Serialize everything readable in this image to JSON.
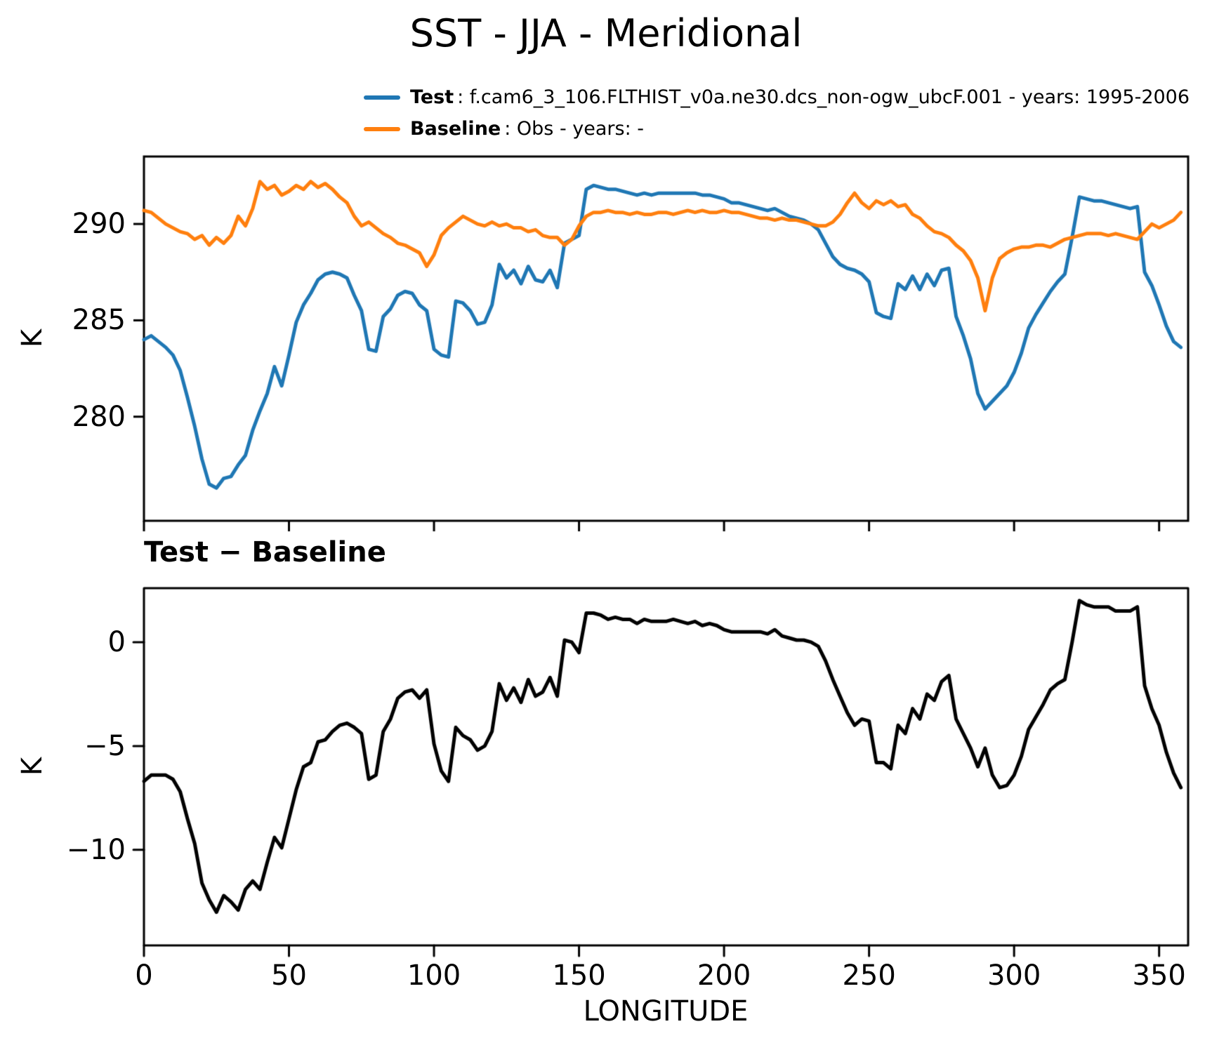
{
  "title": "SST - JJA - Meridional",
  "legend": {
    "items": [
      {
        "label": "Test",
        "desc": ": f.cam6_3_106.FLTHIST_v0a.ne30.dcs_non-ogw_ubcF.001 - years: 1995-2006",
        "color": "#1f77b4"
      },
      {
        "label": "Baseline",
        "desc": ": Obs - years: -",
        "color": "#ff7f0e"
      }
    ]
  },
  "chart_data": [
    {
      "id": "main",
      "type": "line",
      "title": "",
      "ylabel": "K",
      "xlabel": "",
      "xlim": [
        0,
        360
      ],
      "ylim": [
        274.6,
        293.5
      ],
      "xticks": [
        0,
        50,
        100,
        150,
        200,
        250,
        300,
        350
      ],
      "yticks": [
        280,
        285,
        290
      ],
      "x_tick_labels_visible": false,
      "grid": false,
      "x": [
        0,
        2.5,
        5,
        7.5,
        10,
        12.5,
        15,
        17.5,
        20,
        22.5,
        25,
        27.5,
        30,
        32.5,
        35,
        37.5,
        40,
        42.5,
        45,
        47.5,
        50,
        52.5,
        55,
        57.5,
        60,
        62.5,
        65,
        67.5,
        70,
        72.5,
        75,
        77.5,
        80,
        82.5,
        85,
        87.5,
        90,
        92.5,
        95,
        97.5,
        100,
        102.5,
        105,
        107.5,
        110,
        112.5,
        115,
        117.5,
        120,
        122.5,
        125,
        127.5,
        130,
        132.5,
        135,
        137.5,
        140,
        142.5,
        145,
        147.5,
        150,
        152.5,
        155,
        157.5,
        160,
        162.5,
        165,
        167.5,
        170,
        172.5,
        175,
        177.5,
        180,
        182.5,
        185,
        187.5,
        190,
        192.5,
        195,
        197.5,
        200,
        202.5,
        205,
        207.5,
        210,
        212.5,
        215,
        217.5,
        220,
        222.5,
        225,
        227.5,
        230,
        232.5,
        235,
        237.5,
        240,
        242.5,
        245,
        247.5,
        250,
        252.5,
        255,
        257.5,
        260,
        262.5,
        265,
        267.5,
        270,
        272.5,
        275,
        277.5,
        280,
        282.5,
        285,
        287.5,
        290,
        292.5,
        295,
        297.5,
        300,
        302.5,
        305,
        307.5,
        310,
        312.5,
        315,
        317.5,
        320,
        322.5,
        325,
        327.5,
        330,
        332.5,
        335,
        337.5,
        340,
        342.5,
        345,
        347.5,
        350,
        352.5,
        355,
        357.5
      ],
      "series": [
        {
          "name": "Test",
          "color": "#1f77b4",
          "values": [
            284.0,
            284.2,
            283.9,
            283.6,
            283.2,
            282.4,
            281.0,
            279.5,
            277.8,
            276.5,
            276.3,
            276.8,
            276.9,
            277.5,
            278.0,
            279.3,
            280.3,
            281.2,
            282.6,
            281.6,
            283.2,
            284.9,
            285.8,
            286.4,
            287.1,
            287.4,
            287.5,
            287.4,
            287.2,
            286.3,
            285.5,
            283.5,
            283.4,
            285.2,
            285.6,
            286.3,
            286.5,
            286.4,
            285.8,
            285.5,
            283.5,
            283.2,
            283.1,
            286.0,
            285.9,
            285.5,
            284.8,
            284.9,
            285.8,
            287.9,
            287.2,
            287.6,
            286.9,
            287.8,
            287.1,
            287.0,
            287.6,
            286.7,
            289.0,
            289.2,
            289.4,
            291.8,
            292.0,
            291.9,
            291.8,
            291.8,
            291.7,
            291.6,
            291.5,
            291.6,
            291.5,
            291.6,
            291.6,
            291.6,
            291.6,
            291.6,
            291.6,
            291.5,
            291.5,
            291.4,
            291.3,
            291.1,
            291.1,
            291.0,
            290.9,
            290.8,
            290.7,
            290.8,
            290.6,
            290.4,
            290.3,
            290.2,
            290.0,
            289.7,
            289.0,
            288.3,
            287.9,
            287.7,
            287.6,
            287.4,
            287.0,
            285.4,
            285.2,
            285.1,
            286.9,
            286.6,
            287.3,
            286.6,
            287.4,
            286.8,
            287.6,
            287.7,
            285.2,
            284.2,
            283.0,
            281.2,
            280.4,
            280.8,
            281.2,
            281.6,
            282.3,
            283.3,
            284.6,
            285.3,
            285.9,
            286.5,
            287.0,
            287.4,
            289.3,
            291.4,
            291.3,
            291.2,
            291.2,
            291.1,
            291.0,
            290.9,
            290.8,
            290.9,
            287.5,
            286.8,
            285.8,
            284.7,
            283.9,
            283.6
          ]
        },
        {
          "name": "Baseline",
          "color": "#ff7f0e",
          "values": [
            290.7,
            290.6,
            290.3,
            290.0,
            289.8,
            289.6,
            289.5,
            289.2,
            289.4,
            288.9,
            289.3,
            289.0,
            289.4,
            290.4,
            289.9,
            290.8,
            292.2,
            291.8,
            292.0,
            291.5,
            291.7,
            292.0,
            291.8,
            292.2,
            291.9,
            292.1,
            291.8,
            291.4,
            291.1,
            290.4,
            289.9,
            290.1,
            289.8,
            289.5,
            289.3,
            289.0,
            288.9,
            288.7,
            288.5,
            287.8,
            288.4,
            289.4,
            289.8,
            290.1,
            290.4,
            290.2,
            290.0,
            289.9,
            290.1,
            289.9,
            290.0,
            289.8,
            289.8,
            289.6,
            289.7,
            289.4,
            289.3,
            289.3,
            288.9,
            289.2,
            289.9,
            290.4,
            290.6,
            290.6,
            290.7,
            290.6,
            290.6,
            290.5,
            290.6,
            290.5,
            290.5,
            290.6,
            290.6,
            290.5,
            290.6,
            290.7,
            290.6,
            290.7,
            290.6,
            290.6,
            290.7,
            290.6,
            290.6,
            290.5,
            290.4,
            290.3,
            290.3,
            290.2,
            290.3,
            290.2,
            290.2,
            290.1,
            290.0,
            289.9,
            289.9,
            290.1,
            290.5,
            291.1,
            291.6,
            291.1,
            290.8,
            291.2,
            291.0,
            291.2,
            290.9,
            291.0,
            290.5,
            290.3,
            289.9,
            289.6,
            289.5,
            289.3,
            288.9,
            288.6,
            288.1,
            287.2,
            285.5,
            287.2,
            288.2,
            288.5,
            288.7,
            288.8,
            288.8,
            288.9,
            288.9,
            288.8,
            289.0,
            289.2,
            289.3,
            289.4,
            289.5,
            289.5,
            289.5,
            289.4,
            289.5,
            289.4,
            289.3,
            289.2,
            289.6,
            290.0,
            289.8,
            290.0,
            290.2,
            290.6
          ]
        }
      ]
    },
    {
      "id": "diff",
      "type": "line",
      "title": "Test − Baseline",
      "ylabel": "K",
      "xlabel": "LONGITUDE",
      "xlim": [
        0,
        360
      ],
      "ylim": [
        -14.6,
        2.6
      ],
      "xticks": [
        0,
        50,
        100,
        150,
        200,
        250,
        300,
        350
      ],
      "yticks": [
        -10,
        -5,
        0
      ],
      "x_tick_labels_visible": true,
      "grid": false,
      "x": [
        0,
        2.5,
        5,
        7.5,
        10,
        12.5,
        15,
        17.5,
        20,
        22.5,
        25,
        27.5,
        30,
        32.5,
        35,
        37.5,
        40,
        42.5,
        45,
        47.5,
        50,
        52.5,
        55,
        57.5,
        60,
        62.5,
        65,
        67.5,
        70,
        72.5,
        75,
        77.5,
        80,
        82.5,
        85,
        87.5,
        90,
        92.5,
        95,
        97.5,
        100,
        102.5,
        105,
        107.5,
        110,
        112.5,
        115,
        117.5,
        120,
        122.5,
        125,
        127.5,
        130,
        132.5,
        135,
        137.5,
        140,
        142.5,
        145,
        147.5,
        150,
        152.5,
        155,
        157.5,
        160,
        162.5,
        165,
        167.5,
        170,
        172.5,
        175,
        177.5,
        180,
        182.5,
        185,
        187.5,
        190,
        192.5,
        195,
        197.5,
        200,
        202.5,
        205,
        207.5,
        210,
        212.5,
        215,
        217.5,
        220,
        222.5,
        225,
        227.5,
        230,
        232.5,
        235,
        237.5,
        240,
        242.5,
        245,
        247.5,
        250,
        252.5,
        255,
        257.5,
        260,
        262.5,
        265,
        267.5,
        270,
        272.5,
        275,
        277.5,
        280,
        282.5,
        285,
        287.5,
        290,
        292.5,
        295,
        297.5,
        300,
        302.5,
        305,
        307.5,
        310,
        312.5,
        315,
        317.5,
        320,
        322.5,
        325,
        327.5,
        330,
        332.5,
        335,
        337.5,
        340,
        342.5,
        345,
        347.5,
        350,
        352.5,
        355,
        357.5
      ],
      "series": [
        {
          "name": "Test − Baseline",
          "color": "#000000",
          "values": [
            -6.7,
            -6.4,
            -6.4,
            -6.4,
            -6.6,
            -7.2,
            -8.5,
            -9.7,
            -11.6,
            -12.4,
            -13.0,
            -12.2,
            -12.5,
            -12.9,
            -11.9,
            -11.5,
            -11.9,
            -10.6,
            -9.4,
            -9.9,
            -8.5,
            -7.1,
            -6.0,
            -5.8,
            -4.8,
            -4.7,
            -4.3,
            -4.0,
            -3.9,
            -4.1,
            -4.4,
            -6.6,
            -6.4,
            -4.3,
            -3.7,
            -2.7,
            -2.4,
            -2.3,
            -2.7,
            -2.3,
            -4.9,
            -6.2,
            -6.7,
            -4.1,
            -4.5,
            -4.7,
            -5.2,
            -5.0,
            -4.3,
            -2.0,
            -2.8,
            -2.2,
            -2.9,
            -1.8,
            -2.6,
            -2.4,
            -1.7,
            -2.6,
            0.1,
            0.0,
            -0.5,
            1.4,
            1.4,
            1.3,
            1.1,
            1.2,
            1.1,
            1.1,
            0.9,
            1.1,
            1.0,
            1.0,
            1.0,
            1.1,
            1.0,
            0.9,
            1.0,
            0.8,
            0.9,
            0.8,
            0.6,
            0.5,
            0.5,
            0.5,
            0.5,
            0.5,
            0.4,
            0.6,
            0.3,
            0.2,
            0.1,
            0.1,
            0.0,
            -0.2,
            -0.9,
            -1.8,
            -2.6,
            -3.4,
            -4.0,
            -3.7,
            -3.8,
            -5.8,
            -5.8,
            -6.1,
            -4.0,
            -4.4,
            -3.2,
            -3.7,
            -2.5,
            -2.8,
            -1.9,
            -1.6,
            -3.7,
            -4.4,
            -5.1,
            -6.0,
            -5.1,
            -6.4,
            -7.0,
            -6.9,
            -6.4,
            -5.5,
            -4.2,
            -3.6,
            -3.0,
            -2.3,
            -2.0,
            -1.8,
            0.0,
            2.0,
            1.8,
            1.7,
            1.7,
            1.7,
            1.5,
            1.5,
            1.5,
            1.7,
            -2.1,
            -3.2,
            -4.0,
            -5.3,
            -6.3,
            -7.0
          ]
        }
      ]
    }
  ]
}
